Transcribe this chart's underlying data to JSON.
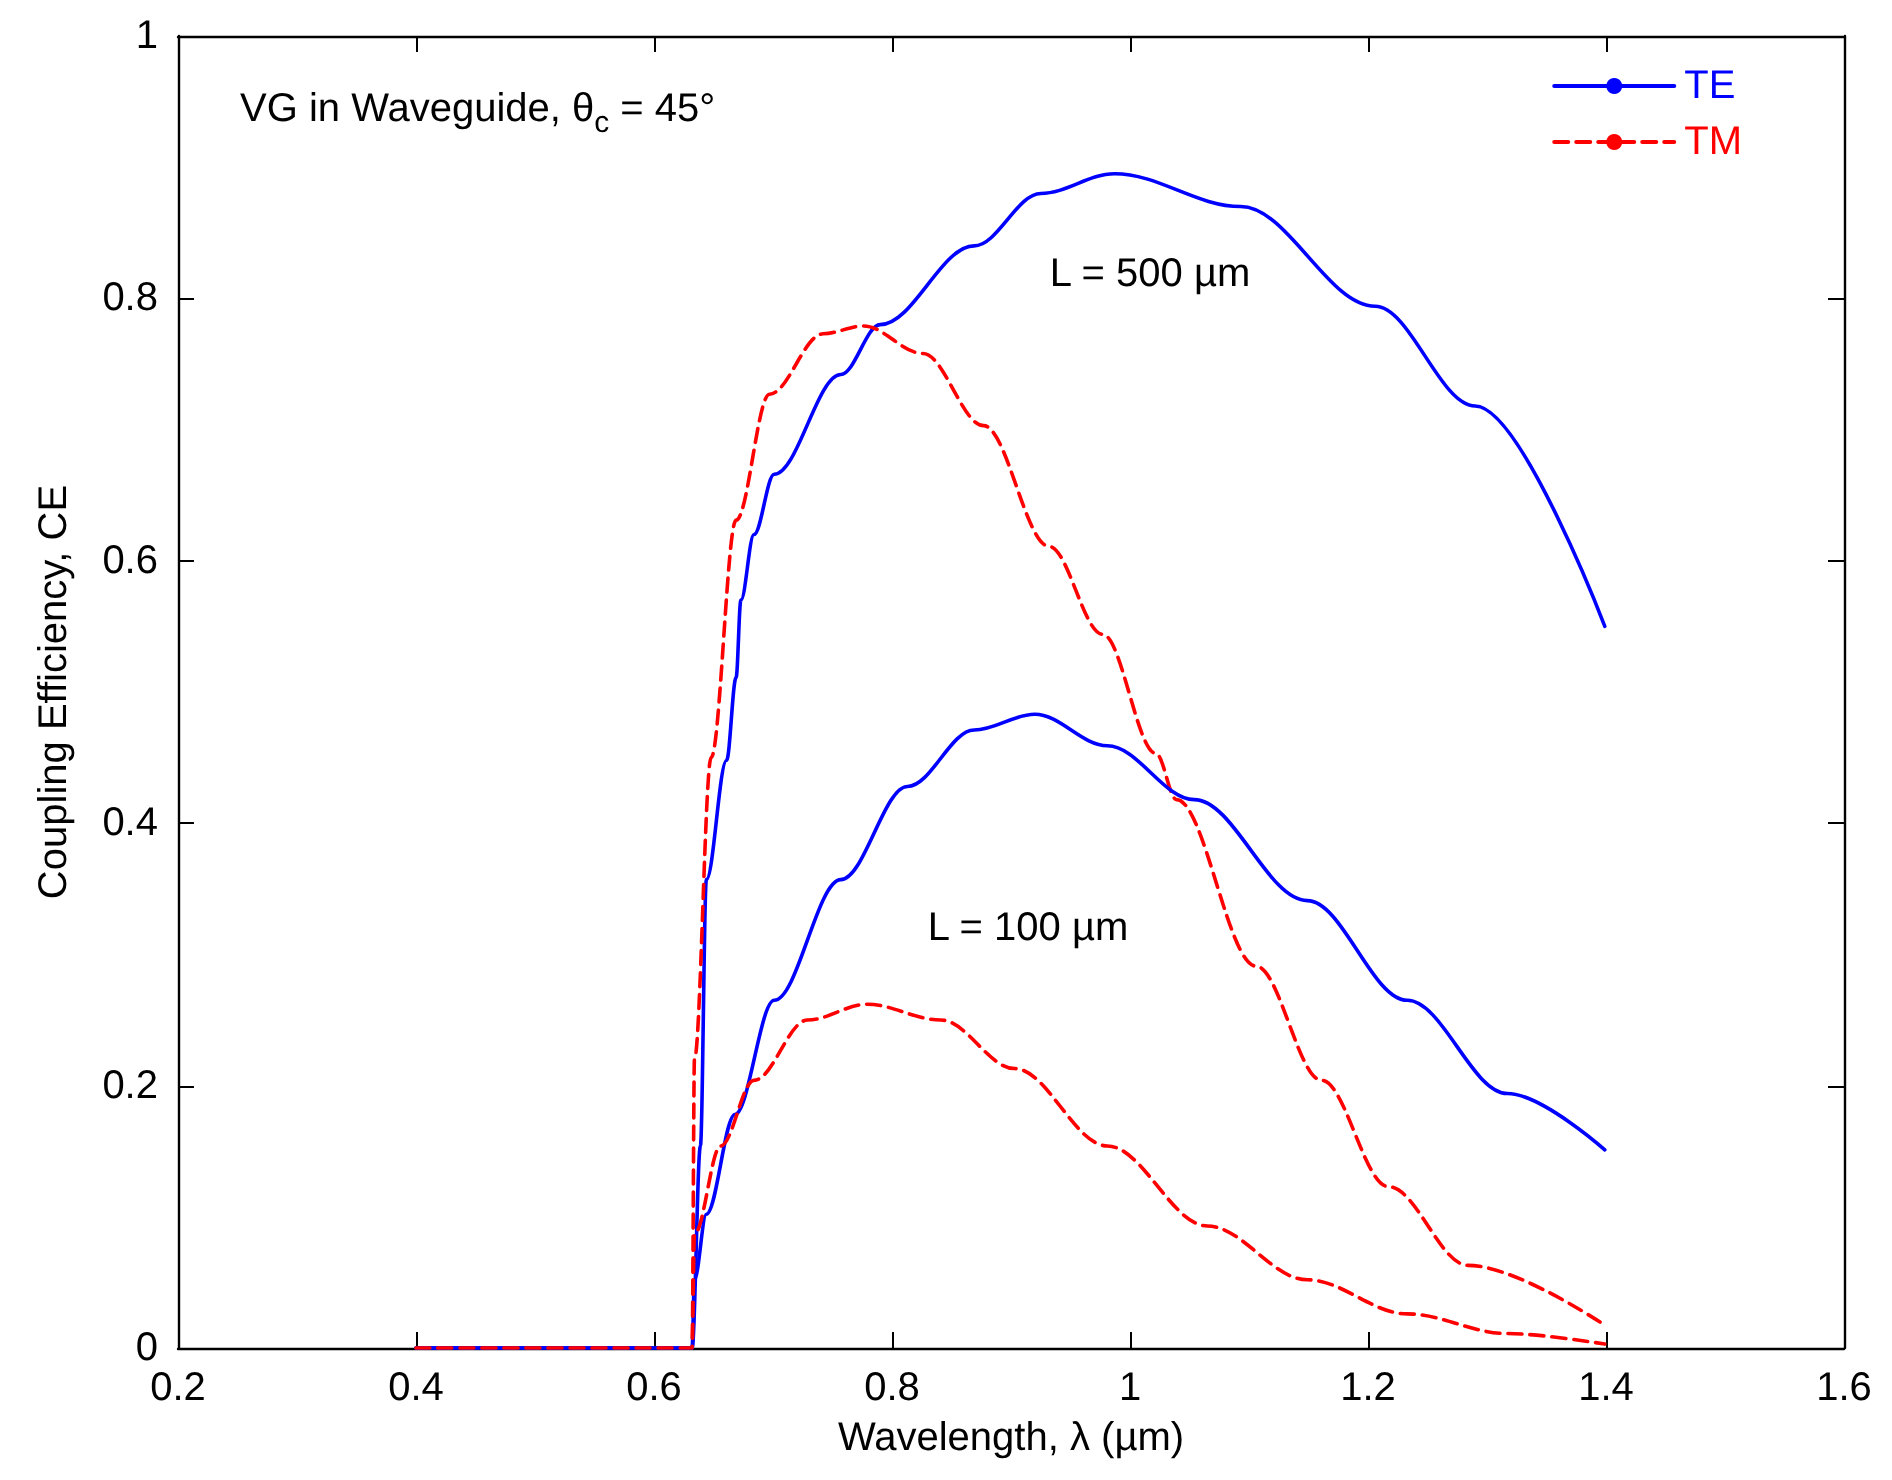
{
  "chart_data": {
    "type": "line",
    "xlabel": "Wavelength, λ (µm)",
    "ylabel": "Coupling Efficiency, CE",
    "xlim": [
      0.2,
      1.6
    ],
    "xticks": [
      0.2,
      0.4,
      0.6,
      0.8,
      1,
      1.2,
      1.4,
      1.6
    ],
    "ylim": [
      0,
      1
    ],
    "yticks": [
      0,
      0.2,
      0.4,
      0.6,
      0.8,
      1
    ],
    "grid": false,
    "legend": "top right",
    "marker": "none",
    "annotations": [
      "VG in Waveguide, θ$_{c}$ = 45°",
      "L = 500 µm",
      "L = 100 µm"
    ],
    "series": [
      {
        "name": "TE",
        "color": "#0000ff",
        "line_style": "solid",
        "x": [
          0.4,
          0.632,
          0.639,
          0.644,
          0.661,
          0.669,
          0.673,
          0.684,
          0.701,
          0.757,
          0.79,
          0.869,
          0.925,
          0.987,
          1.093,
          1.206,
          1.29,
          1.399
        ],
        "values": [
          0,
          0,
          0.154,
          0.357,
          0.448,
          0.511,
          0.57,
          0.62,
          0.666,
          0.742,
          0.78,
          0.84,
          0.88,
          0.895,
          0.87,
          0.794,
          0.718,
          0.55
        ]
      },
      {
        "name": "TM",
        "color": "#ff0000",
        "line_style": "dashed",
        "x": [
          0.4,
          0.632,
          0.634,
          0.648,
          0.669,
          0.697,
          0.742,
          0.776,
          0.826,
          0.877,
          0.932,
          0.977,
          1.022,
          1.039,
          1.106,
          1.161,
          1.217,
          1.284,
          1.398
        ],
        "values": [
          0,
          0,
          0.22,
          0.45,
          0.631,
          0.727,
          0.773,
          0.779,
          0.758,
          0.703,
          0.611,
          0.544,
          0.453,
          0.418,
          0.291,
          0.204,
          0.123,
          0.063,
          0.018
        ]
      },
      {
        "color": "#0000ff",
        "line_style": "solid",
        "x": [
          0.4,
          0.632,
          0.634,
          0.644,
          0.668,
          0.701,
          0.757,
          0.813,
          0.869,
          0.92,
          0.981,
          1.054,
          1.149,
          1.233,
          1.317,
          1.399
        ],
        "values": [
          0,
          0,
          0.052,
          0.102,
          0.178,
          0.265,
          0.357,
          0.428,
          0.471,
          0.483,
          0.459,
          0.418,
          0.341,
          0.265,
          0.194,
          0.151
        ]
      },
      {
        "color": "#ff0000",
        "line_style": "dashed",
        "x": [
          0.4,
          0.632,
          0.634,
          0.656,
          0.684,
          0.729,
          0.779,
          0.841,
          0.903,
          0.981,
          1.065,
          1.149,
          1.233,
          1.317,
          1.399
        ],
        "values": [
          0,
          0,
          0.087,
          0.154,
          0.204,
          0.25,
          0.262,
          0.25,
          0.213,
          0.154,
          0.093,
          0.052,
          0.026,
          0.011,
          0.003
        ]
      }
    ]
  }
}
